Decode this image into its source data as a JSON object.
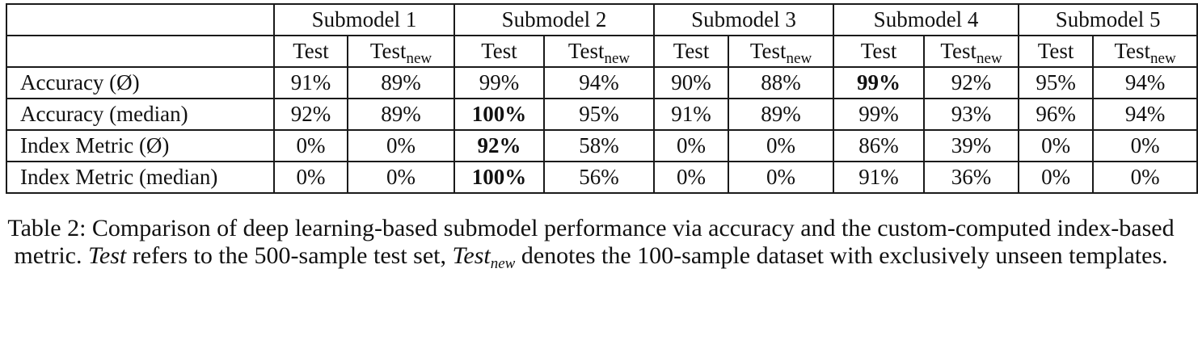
{
  "table": {
    "submodels": [
      "Submodel 1",
      "Submodel 2",
      "Submodel 3",
      "Submodel 4",
      "Submodel 5"
    ],
    "col_test": "Test",
    "col_testnew_base": "Test",
    "col_testnew_sub": "new",
    "rows": [
      {
        "label": "Accuracy (Ø)",
        "values": [
          "91%",
          "89%",
          "99%",
          "94%",
          "90%",
          "88%",
          "99%",
          "92%",
          "95%",
          "94%"
        ],
        "bold": [
          false,
          false,
          false,
          false,
          false,
          false,
          true,
          false,
          false,
          false
        ]
      },
      {
        "label": "Accuracy (median)",
        "values": [
          "92%",
          "89%",
          "100%",
          "95%",
          "91%",
          "89%",
          "99%",
          "93%",
          "96%",
          "94%"
        ],
        "bold": [
          false,
          false,
          true,
          false,
          false,
          false,
          false,
          false,
          false,
          false
        ]
      },
      {
        "label": "Index Metric (Ø)",
        "values": [
          "0%",
          "0%",
          "92%",
          "58%",
          "0%",
          "0%",
          "86%",
          "39%",
          "0%",
          "0%"
        ],
        "bold": [
          false,
          false,
          true,
          false,
          false,
          false,
          false,
          false,
          false,
          false
        ]
      },
      {
        "label": "Index Metric (median)",
        "values": [
          "0%",
          "0%",
          "100%",
          "56%",
          "0%",
          "0%",
          "91%",
          "36%",
          "0%",
          "0%"
        ],
        "bold": [
          false,
          false,
          true,
          false,
          false,
          false,
          false,
          false,
          false,
          false
        ]
      }
    ]
  },
  "caption": {
    "part1": "Table 2: Comparison of deep learning-based submodel performance via accuracy and the custom-computed index-based metric. ",
    "test_italic": "Test",
    "part2": " refers to the 500-sample test set, ",
    "testnew_italic": "Test",
    "testnew_sub": "new",
    "part3": " denotes the 100-sample dataset with exclusively unseen templates."
  }
}
